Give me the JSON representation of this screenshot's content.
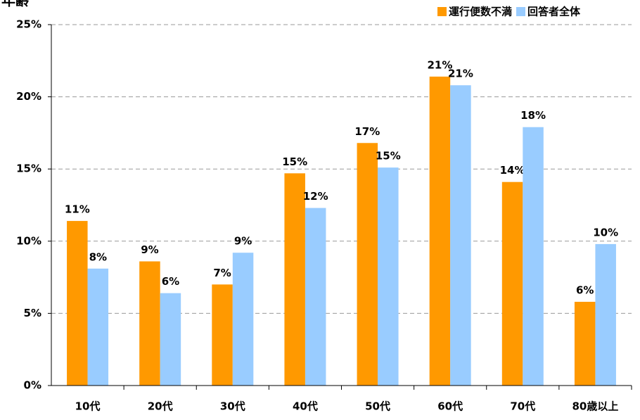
{
  "chart_data": {
    "type": "bar",
    "title": "年齢",
    "categories": [
      "10代",
      "20代",
      "30代",
      "40代",
      "50代",
      "60代",
      "70代",
      "80歳以上"
    ],
    "series": [
      {
        "name": "運行便数不満",
        "color": "#ff9900",
        "values": [
          11.4,
          8.6,
          7.0,
          14.7,
          16.8,
          21.4,
          14.1,
          5.8
        ],
        "value_labels": [
          "11%",
          "9%",
          "7%",
          "15%",
          "17%",
          "21%",
          "14%",
          "6%"
        ]
      },
      {
        "name": "回答者全体",
        "color": "#99ccff",
        "values": [
          8.1,
          6.4,
          9.2,
          12.3,
          15.1,
          20.8,
          17.9,
          9.8
        ],
        "value_labels": [
          "8%",
          "6%",
          "9%",
          "12%",
          "15%",
          "21%",
          "18%",
          "10%"
        ]
      }
    ],
    "ylim": [
      0,
      25
    ],
    "yticks": [
      {
        "value": 0,
        "label": "0%"
      },
      {
        "value": 5,
        "label": "5%"
      },
      {
        "value": 10,
        "label": "10%"
      },
      {
        "value": 15,
        "label": "15%"
      },
      {
        "value": 20,
        "label": "20%"
      },
      {
        "value": 25,
        "label": "25%"
      }
    ],
    "grid": true,
    "legend": "top-right"
  }
}
